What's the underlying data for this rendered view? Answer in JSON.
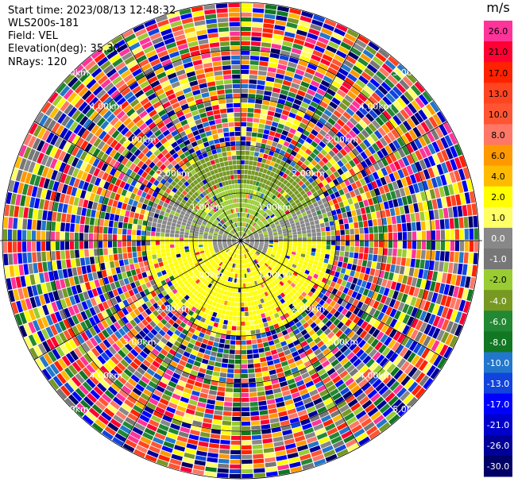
{
  "header": {
    "start_time": "Start time: 2023/08/13 12:48:32",
    "station": "WLS200s-181",
    "field": "Field: VEL",
    "elevation": "Elevation(deg): 35.30",
    "nrays": "NRays: 120"
  },
  "range_rings": {
    "labels": [
      "1.00km",
      "2.00km",
      "3.00km",
      "4.00km",
      "5.00km"
    ]
  },
  "colorbar": {
    "unit": "m/s",
    "levels": [
      {
        "label": "26.0",
        "color": "#ff3399"
      },
      {
        "label": "21.0",
        "color": "#ff0033"
      },
      {
        "label": "17.0",
        "color": "#ff2200"
      },
      {
        "label": "13.0",
        "color": "#ff4422"
      },
      {
        "label": "10.0",
        "color": "#ff5533"
      },
      {
        "label": "8.0",
        "color": "#ff7766"
      },
      {
        "label": "6.0",
        "color": "#ff9900"
      },
      {
        "label": "4.0",
        "color": "#ffbb00"
      },
      {
        "label": "2.0",
        "color": "#ffff00"
      },
      {
        "label": "1.0",
        "color": "#ffff66"
      },
      {
        "label": "0.0",
        "color": "#888888"
      },
      {
        "label": "-1.0",
        "color": "#777777"
      },
      {
        "label": "-2.0",
        "color": "#99cc33"
      },
      {
        "label": "-4.0",
        "color": "#779922"
      },
      {
        "label": "-6.0",
        "color": "#228833"
      },
      {
        "label": "-8.0",
        "color": "#117722"
      },
      {
        "label": "-10.0",
        "color": "#2277cc"
      },
      {
        "label": "-13.0",
        "color": "#1144dd"
      },
      {
        "label": "-17.0",
        "color": "#0000ff"
      },
      {
        "label": "-21.0",
        "color": "#0000cc"
      },
      {
        "label": "-26.0",
        "color": "#000099"
      },
      {
        "label": "-30.0",
        "color": "#000066"
      }
    ]
  }
}
